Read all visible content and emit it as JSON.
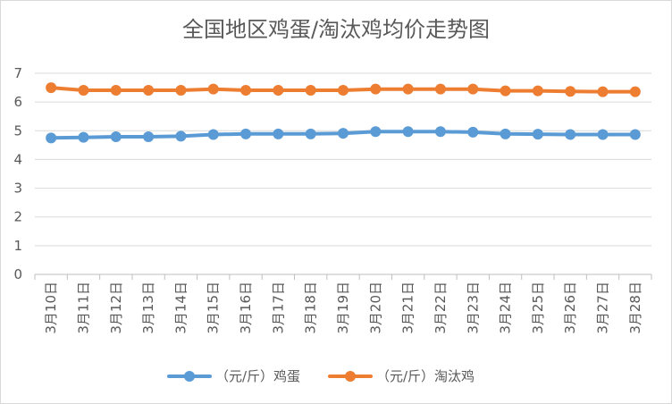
{
  "chart_data": {
    "type": "line",
    "title": "全国地区鸡蛋/淘汰鸡均价走势图",
    "xlabel": "",
    "ylabel": "",
    "ylim": [
      0,
      7
    ],
    "yticks": [
      "0",
      "1",
      "2",
      "3",
      "4",
      "5",
      "6",
      "7"
    ],
    "grid": true,
    "legend_position": "bottom",
    "categories": [
      "3月10日",
      "3月11日",
      "3月12日",
      "3月13日",
      "3月14日",
      "3月15日",
      "3月16日",
      "3月17日",
      "3月18日",
      "3月19日",
      "3月20日",
      "3月21日",
      "3月22日",
      "3月23日",
      "3月24日",
      "3月25日",
      "3月26日",
      "3月27日",
      "3月28日"
    ],
    "series": [
      {
        "name": "（元/斤）鸡蛋",
        "color": "#5b9bd5",
        "values": [
          4.75,
          4.77,
          4.79,
          4.79,
          4.81,
          4.87,
          4.89,
          4.89,
          4.89,
          4.91,
          4.97,
          4.97,
          4.97,
          4.95,
          4.89,
          4.88,
          4.87,
          4.87,
          4.87
        ]
      },
      {
        "name": "（元/斤）淘汰鸡",
        "color": "#ed7d31",
        "values": [
          6.5,
          6.41,
          6.41,
          6.41,
          6.41,
          6.45,
          6.41,
          6.41,
          6.41,
          6.41,
          6.45,
          6.45,
          6.45,
          6.45,
          6.39,
          6.39,
          6.37,
          6.36,
          6.36
        ]
      }
    ]
  }
}
